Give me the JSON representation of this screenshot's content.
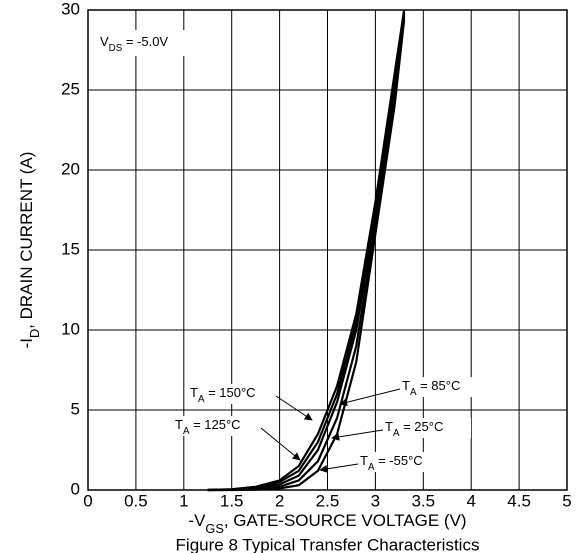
{
  "chart_data": {
    "type": "line",
    "ylabel": {
      "main": "-I",
      "sub": "D",
      "rest": ", DRAIN CURRENT (A)"
    },
    "xlabel": {
      "main": "-V",
      "sub": "GS",
      "rest": ", GATE-SOURCE VOLTAGE (V)"
    },
    "caption": "Figure 8 Typical Transfer Characteristics",
    "x": [
      1.25,
      1.5,
      1.75,
      2.0,
      2.2,
      2.4,
      2.6,
      2.8,
      3.0,
      3.2,
      3.3
    ],
    "series": [
      {
        "color": "#000000",
        "values": [
          0,
          0.05,
          0.2,
          0.6,
          1.5,
          3.5,
          6.5,
          11,
          18,
          26,
          30
        ]
      },
      {
        "color": "#000000",
        "values": [
          0,
          0.03,
          0.15,
          0.5,
          1.2,
          3.0,
          6.0,
          10.5,
          17.5,
          25.5,
          30
        ]
      },
      {
        "color": "#000000",
        "values": [
          0,
          0.02,
          0.1,
          0.35,
          0.9,
          2.5,
          5.5,
          10,
          17,
          25,
          29.8
        ]
      },
      {
        "color": "#000000",
        "values": [
          0,
          0.01,
          0.05,
          0.2,
          0.6,
          1.8,
          4.5,
          9,
          16.5,
          24.5,
          29.6
        ]
      },
      {
        "color": "#000000",
        "values": [
          0,
          0,
          0.02,
          0.1,
          0.3,
          1.2,
          3.5,
          8,
          16,
          24,
          29.4
        ]
      }
    ],
    "annotations": [
      {
        "main": "T",
        "sub": "A",
        "rest": " = 150°C"
      },
      {
        "main": "T",
        "sub": "A",
        "rest": " = 125°C"
      },
      {
        "main": "T",
        "sub": "A",
        "rest": " = 85°C"
      },
      {
        "main": "T",
        "sub": "A",
        "rest": " = 25°C"
      },
      {
        "main": "T",
        "sub": "A",
        "rest": " = -55°C"
      }
    ],
    "condition": {
      "main": "V",
      "sub": "DS",
      "rest": " = -5.0V"
    },
    "xlim": [
      0,
      5
    ],
    "xticks": [
      0,
      0.5,
      1,
      1.5,
      2,
      2.5,
      3,
      3.5,
      4,
      4.5,
      5
    ],
    "ylim": [
      0,
      30
    ],
    "yticks": [
      0,
      5,
      10,
      15,
      20,
      25,
      30
    ],
    "grid": true
  }
}
